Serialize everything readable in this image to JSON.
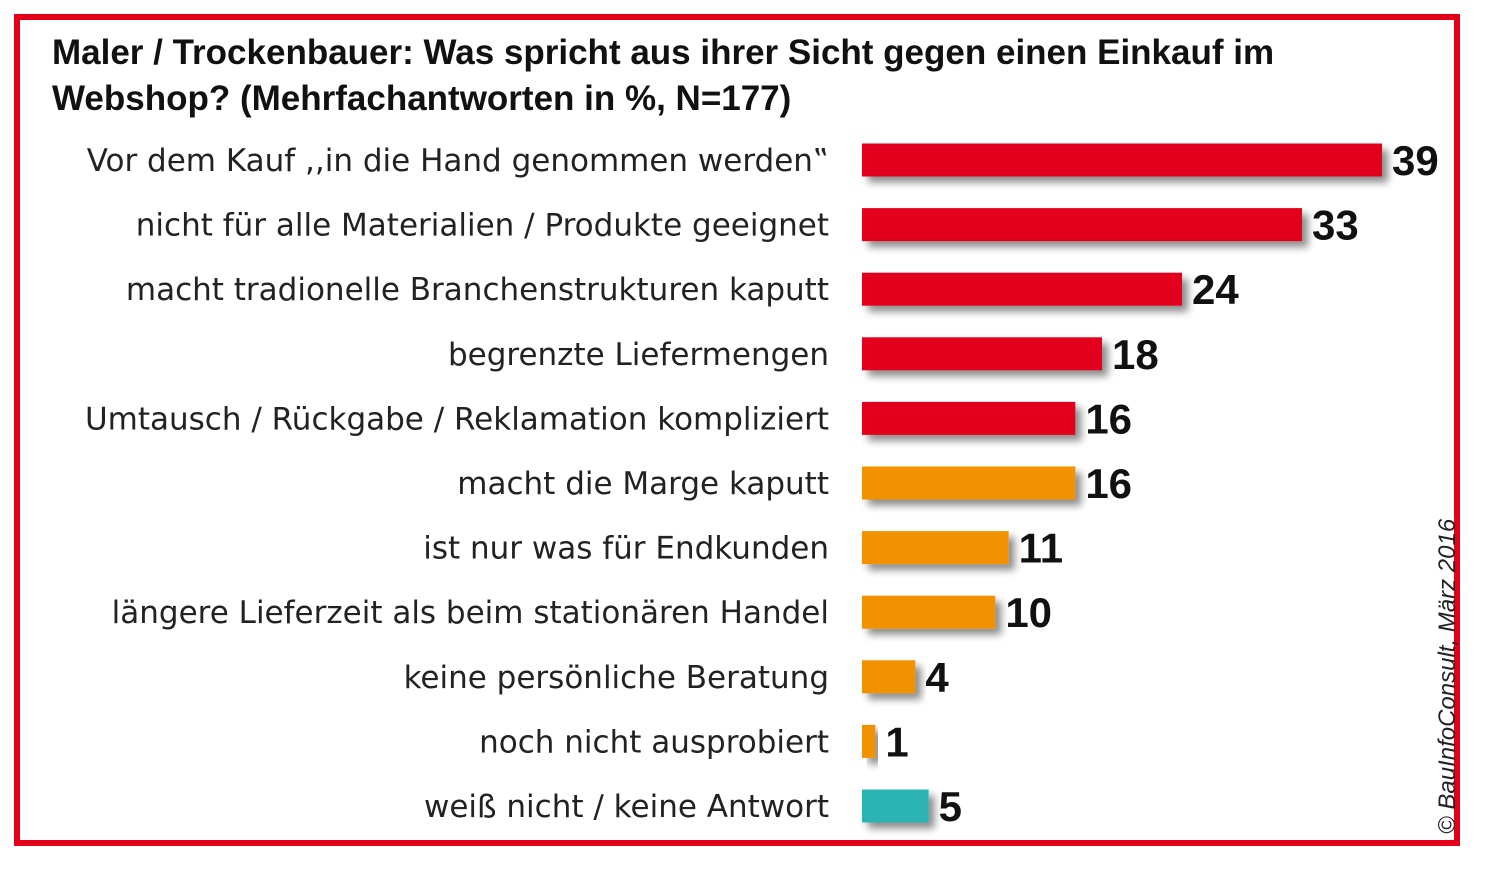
{
  "colors": {
    "frame": "#e3001b",
    "series_red": "#e3001b",
    "series_orange": "#f39200",
    "series_teal": "#2bb5b2"
  },
  "credit": "© BauInfoConsult, März 2016",
  "chart_data": {
    "type": "bar",
    "orientation": "horizontal",
    "title": "Maler / Trockenbauer: Was spricht aus ihrer Sicht gegen einen Einkauf im Webshop? (Mehrfachantworten in %, N=177)",
    "categories": [
      "Vor dem Kauf ,,in die Hand genommen werden‟",
      "nicht für alle Materialien / Produkte geeignet",
      "macht tradionelle Branchenstrukturen kaputt",
      "begrenzte Liefermengen",
      "Umtausch / Rückgabe / Reklamation kompliziert",
      "macht die Marge kaputt",
      "ist nur was für Endkunden",
      "längere Lieferzeit als beim stationären Handel",
      "keine persönliche Beratung",
      "noch nicht ausprobiert",
      "weiß nicht / keine Antwort"
    ],
    "values": [
      39,
      33,
      24,
      18,
      16,
      16,
      11,
      10,
      4,
      1,
      5
    ],
    "bar_colors": [
      "#e3001b",
      "#e3001b",
      "#e3001b",
      "#e3001b",
      "#e3001b",
      "#f39200",
      "#f39200",
      "#f39200",
      "#f39200",
      "#f39200",
      "#2bb5b2"
    ],
    "xlim": [
      0,
      39
    ],
    "axes_visible": false,
    "grid": false,
    "data_labels": true
  }
}
